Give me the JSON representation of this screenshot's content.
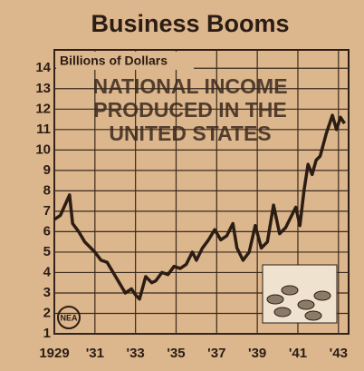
{
  "chart_data": {
    "type": "line",
    "title": "Business Booms",
    "y_label": "Billions of Dollars",
    "annotation": [
      "NATIONAL INCOME",
      "PRODUCED IN THE",
      "UNITED STATES"
    ],
    "logo": "NEA",
    "color": "#2b1d14",
    "grid": true,
    "x": [
      1929.0,
      1929.3,
      1929.75,
      1929.9,
      1930.2,
      1930.5,
      1930.8,
      1931.0,
      1931.3,
      1931.6,
      1931.9,
      1932.2,
      1932.5,
      1932.8,
      1933.0,
      1933.2,
      1933.5,
      1933.8,
      1934.0,
      1934.3,
      1934.6,
      1934.9,
      1935.2,
      1935.5,
      1935.8,
      1936.0,
      1936.3,
      1936.6,
      1936.9,
      1937.2,
      1937.5,
      1937.8,
      1938.0,
      1938.3,
      1938.6,
      1938.9,
      1939.2,
      1939.5,
      1939.8,
      1940.1,
      1940.4,
      1940.7,
      1940.9,
      1941.1,
      1941.3,
      1941.5,
      1941.7,
      1941.9,
      1942.1,
      1942.4,
      1942.7,
      1942.9,
      1943.1,
      1943.3
    ],
    "values": [
      6.6,
      6.8,
      7.8,
      6.4,
      6.0,
      5.5,
      5.2,
      5.0,
      4.6,
      4.5,
      4.0,
      3.5,
      3.0,
      3.2,
      2.9,
      2.7,
      3.8,
      3.5,
      3.6,
      4.0,
      3.9,
      4.3,
      4.2,
      4.4,
      5.0,
      4.6,
      5.2,
      5.6,
      6.1,
      5.6,
      5.8,
      6.4,
      5.2,
      4.6,
      5.0,
      6.3,
      5.2,
      5.5,
      7.3,
      5.9,
      6.2,
      6.8,
      7.2,
      6.3,
      8.0,
      9.3,
      8.8,
      9.5,
      9.7,
      10.8,
      11.7,
      11.0,
      11.6,
      11.3
    ],
    "xlim": [
      1929,
      1943.5
    ],
    "xticks": [
      1929,
      {
        "value": 1931,
        "label": "'31"
      },
      {
        "value": 1933,
        "label": "'33"
      },
      {
        "value": 1935,
        "label": "'35"
      },
      {
        "value": 1937,
        "label": "'37"
      },
      {
        "value": 1939,
        "label": "'39"
      },
      {
        "value": 1941,
        "label": "'41"
      },
      {
        "value": 1943,
        "label": "'43"
      }
    ],
    "ylim": [
      1,
      14.9
    ],
    "yticks": [
      1,
      2,
      3,
      4,
      5,
      6,
      7,
      8,
      9,
      10,
      11,
      12,
      13,
      14
    ]
  }
}
